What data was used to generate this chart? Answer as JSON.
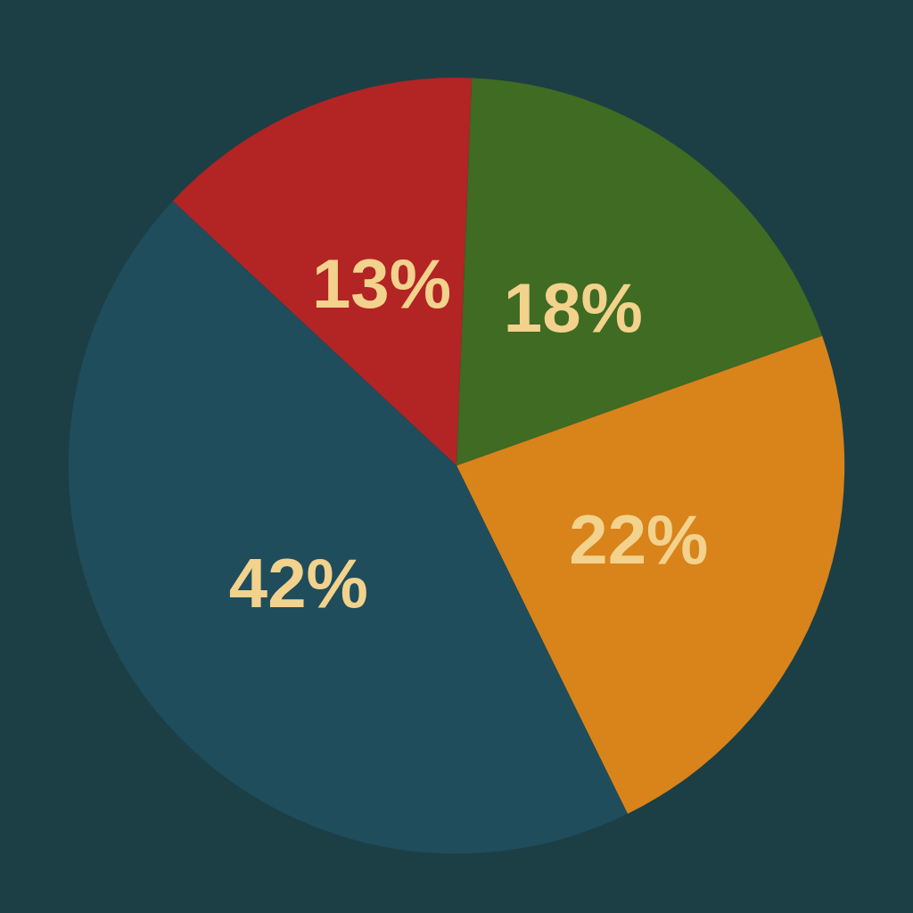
{
  "chart_data": {
    "type": "pie",
    "categories": [
      null,
      null,
      null,
      null
    ],
    "values": [
      13,
      18,
      22,
      42
    ],
    "colors": [
      "#b32424",
      "#3f6b22",
      "#d9831b",
      "#1f4d5c"
    ],
    "value_labels": [
      "13%",
      "18%",
      "22%",
      "42%"
    ]
  }
}
